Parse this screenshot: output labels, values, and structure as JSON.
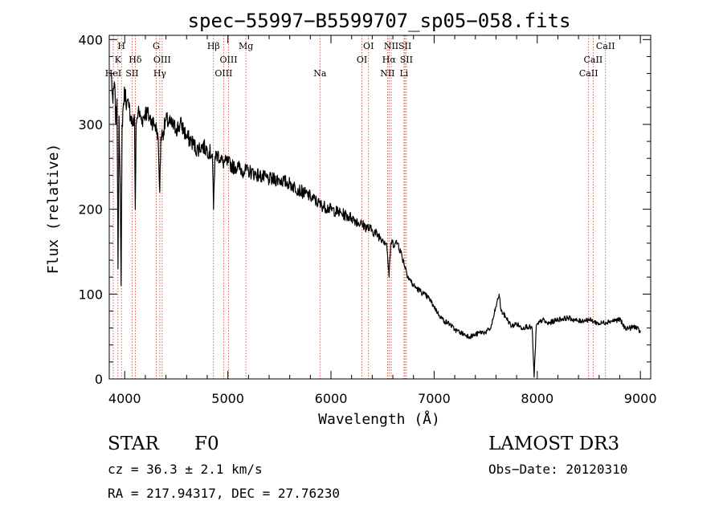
{
  "chart_data": {
    "type": "line",
    "title": "spec−55997−B5599707_sp05−058.fits",
    "xlabel": "Wavelength (Å)",
    "ylabel": "Flux (relative)",
    "xlim": [
      3850,
      9100
    ],
    "ylim": [
      0,
      405
    ],
    "xticks": [
      4000,
      5000,
      6000,
      7000,
      8000,
      9000
    ],
    "yticks": [
      0,
      100,
      200,
      300,
      400
    ],
    "series": [
      {
        "name": "flux",
        "x": [
          3870,
          3885,
          3900,
          3915,
          3925,
          3935,
          3945,
          3955,
          3965,
          3975,
          3985,
          4000,
          4020,
          4040,
          4060,
          4080,
          4095,
          4102,
          4110,
          4130,
          4150,
          4170,
          4200,
          4230,
          4260,
          4290,
          4320,
          4340,
          4350,
          4370,
          4400,
          4450,
          4500,
          4550,
          4600,
          4650,
          4700,
          4750,
          4800,
          4850,
          4861,
          4875,
          4900,
          4950,
          5000,
          5050,
          5100,
          5150,
          5200,
          5300,
          5400,
          5500,
          5600,
          5700,
          5800,
          5900,
          6000,
          6100,
          6200,
          6300,
          6400,
          6500,
          6540,
          6563,
          6580,
          6620,
          6650,
          6700,
          6750,
          6800,
          6850,
          6900,
          6950,
          7000,
          7050,
          7100,
          7150,
          7200,
          7250,
          7300,
          7350,
          7400,
          7450,
          7500,
          7550,
          7600,
          7630,
          7650,
          7700,
          7750,
          7800,
          7850,
          7900,
          7950,
          7970,
          7990,
          8050,
          8100,
          8200,
          8300,
          8400,
          8500,
          8600,
          8700,
          8800,
          8850,
          8900,
          8950,
          9000
        ],
        "y": [
          360,
          325,
          350,
          300,
          330,
          130,
          310,
          240,
          110,
          300,
          320,
          340,
          325,
          320,
          310,
          300,
          305,
          200,
          300,
          315,
          310,
          305,
          315,
          310,
          305,
          300,
          290,
          220,
          285,
          290,
          305,
          300,
          295,
          300,
          285,
          280,
          270,
          275,
          270,
          265,
          200,
          262,
          265,
          255,
          255,
          250,
          250,
          245,
          245,
          240,
          235,
          235,
          230,
          222,
          215,
          205,
          200,
          195,
          190,
          182,
          175,
          165,
          160,
          120,
          160,
          160,
          160,
          140,
          120,
          110,
          105,
          100,
          95,
          85,
          75,
          68,
          65,
          58,
          55,
          52,
          50,
          52,
          55,
          55,
          60,
          85,
          100,
          80,
          72,
          62,
          65,
          60,
          62,
          60,
          2,
          62,
          70,
          65,
          70,
          72,
          68,
          70,
          65,
          68,
          70,
          60,
          60,
          62,
          55
        ]
      }
    ],
    "lines": [
      {
        "wl": 3889,
        "label": "HeI",
        "row": 2
      },
      {
        "wl": 3934,
        "label": "K",
        "row": 1
      },
      {
        "wl": 3968,
        "label": "H",
        "row": 0
      },
      {
        "wl": 4072,
        "label": "SII",
        "row": 2
      },
      {
        "wl": 4102,
        "label": "Hδ",
        "row": 1
      },
      {
        "wl": 4305,
        "label": "G",
        "row": 0
      },
      {
        "wl": 4340,
        "label": "Hγ",
        "row": 2
      },
      {
        "wl": 4363,
        "label": "OIII",
        "row": 1
      },
      {
        "wl": 4861,
        "label": "Hβ",
        "row": 0
      },
      {
        "wl": 4959,
        "label": "OIII",
        "row": 2
      },
      {
        "wl": 5007,
        "label": "OIII",
        "row": 1
      },
      {
        "wl": 5175,
        "label": "Mg",
        "row": 0
      },
      {
        "wl": 5893,
        "label": "Na",
        "row": 2
      },
      {
        "wl": 6300,
        "label": "OI",
        "row": 1
      },
      {
        "wl": 6364,
        "label": "OI",
        "row": 0
      },
      {
        "wl": 6548,
        "label": "NII",
        "row": 2
      },
      {
        "wl": 6563,
        "label": "Hα",
        "row": 1
      },
      {
        "wl": 6584,
        "label": "NII",
        "row": 0
      },
      {
        "wl": 6708,
        "label": "Li",
        "row": 2
      },
      {
        "wl": 6717,
        "label": "SII",
        "row": 0
      },
      {
        "wl": 6731,
        "label": "SII",
        "row": 1
      },
      {
        "wl": 8498,
        "label": "CaII",
        "row": 2
      },
      {
        "wl": 8542,
        "label": "CaII",
        "row": 1
      },
      {
        "wl": 8662,
        "label": "CaII",
        "row": 0
      }
    ]
  },
  "info": {
    "class": "STAR",
    "subclass": "F0",
    "cz": "cz = 36.3 ± 2.1 km/s",
    "radec": "RA = 217.94317, DEC =  27.76230",
    "survey": "LAMOST DR3",
    "obsdate": "Obs−Date: 20120310"
  },
  "colors": {
    "line_marker": "#c0392b",
    "spectrum": "#000000",
    "axis": "#000000"
  }
}
